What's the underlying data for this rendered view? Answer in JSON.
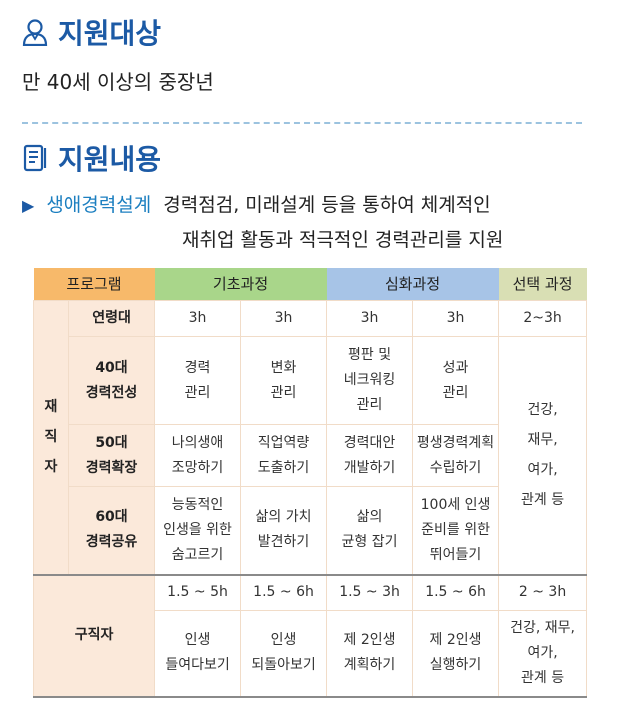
{
  "section1": {
    "title": "지원대상",
    "icon": "person-icon",
    "body": "만 40세 이상의 중장년"
  },
  "section2": {
    "title": "지원내용",
    "icon": "document-list-icon",
    "bullet": "▶",
    "highlight": "생애경력설계",
    "line1": "경력점검, 미래설계 등을 통하여 체계적인",
    "line2": "재취업 활동과 적극적인 경력관리를 지원"
  },
  "table": {
    "headers": {
      "program": "프로그램",
      "basic": "기초과정",
      "deep": "심화과정",
      "optional": "선택 과정"
    },
    "employed_label": [
      "재",
      "직",
      "자"
    ],
    "age_row": {
      "label": "연령대",
      "values": [
        "3h",
        "3h",
        "3h",
        "3h",
        "2~3h"
      ]
    },
    "rows": [
      {
        "label": [
          "40대",
          "경력전성"
        ],
        "cells": [
          [
            "경력",
            "관리"
          ],
          [
            "변화",
            "관리"
          ],
          [
            "평판 및",
            "네크워킹",
            "관리"
          ],
          [
            "성과",
            "관리"
          ]
        ]
      },
      {
        "label": [
          "50대",
          "경력확장"
        ],
        "cells": [
          [
            "나의생애",
            "조망하기"
          ],
          [
            "직업역량",
            "도출하기"
          ],
          [
            "경력대안",
            "개발하기"
          ],
          [
            "평생경력계획",
            "수립하기"
          ]
        ]
      },
      {
        "label": [
          "60대",
          "경력공유"
        ],
        "cells": [
          [
            "능동적인",
            "인생을 위한",
            "숨고르기"
          ],
          [
            "삶의 가치",
            "발견하기"
          ],
          [
            "삶의",
            "균형 잡기"
          ],
          [
            "100세 인생",
            "준비를 위한",
            "뛰어들기"
          ]
        ]
      }
    ],
    "employed_optional": [
      "건강,",
      "재무,",
      "여가,",
      "관계 등"
    ],
    "seeker": {
      "label": "구직자",
      "hours": [
        "1.5 ~ 5h",
        "1.5 ~ 6h",
        "1.5 ~ 3h",
        "1.5 ~ 6h",
        "2 ~ 3h"
      ],
      "cells": [
        [
          "인생",
          "들여다보기"
        ],
        [
          "인생",
          "되돌아보기"
        ],
        [
          "제 2인생",
          "계획하기"
        ],
        [
          "제 2인생",
          "실행하기"
        ],
        [
          "건강, 재무,",
          "여가,",
          "관계 등"
        ]
      ]
    }
  }
}
